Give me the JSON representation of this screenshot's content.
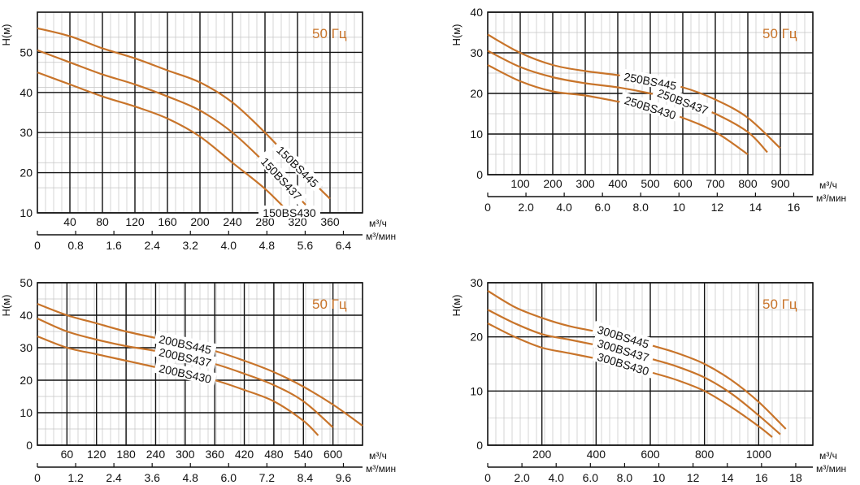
{
  "chart_data": [
    {
      "type": "line",
      "freq_label": "50 Гц",
      "ylabel": "H(м)",
      "x_unit_label": "м³/ч",
      "x2_unit_label": "м³/мин",
      "ylim": [
        10,
        60
      ],
      "xlim": [
        0,
        400
      ],
      "x_ticks": [
        40,
        80,
        120,
        160,
        200,
        240,
        280,
        320,
        360
      ],
      "y_ticks": [
        10,
        20,
        30,
        40,
        50
      ],
      "x2_ticks": [
        "0",
        "0.8",
        "1.6",
        "2.4",
        "3.2",
        "4.0",
        "4.8",
        "5.6",
        "6.4"
      ],
      "series": [
        {
          "name": "150BS445",
          "x": [
            0,
            40,
            80,
            120,
            160,
            200,
            240,
            280,
            320,
            360
          ],
          "y": [
            56,
            54,
            51,
            48.5,
            45.5,
            42.5,
            37.5,
            30,
            21.5,
            13.5
          ]
        },
        {
          "name": "150BS437",
          "x": [
            0,
            40,
            80,
            120,
            160,
            200,
            240,
            280,
            300,
            330
          ],
          "y": [
            50.5,
            47.5,
            44.5,
            42,
            39,
            35.5,
            30,
            22.5,
            18.5,
            12
          ]
        },
        {
          "name": "150BS430",
          "x": [
            0,
            40,
            80,
            120,
            160,
            200,
            240,
            280,
            310
          ],
          "y": [
            45,
            42,
            39,
            36.5,
            33.5,
            29,
            22.5,
            16,
            10
          ]
        }
      ]
    },
    {
      "type": "line",
      "freq_label": "50 Гц",
      "ylabel": "H(м)",
      "x_unit_label": "м³/ч",
      "x2_unit_label": "м³/мин",
      "ylim": [
        0,
        40
      ],
      "xlim": [
        0,
        1000
      ],
      "x_ticks": [
        100,
        200,
        300,
        400,
        500,
        600,
        700,
        800,
        900
      ],
      "y_ticks": [
        0,
        10,
        20,
        30,
        40
      ],
      "x2_ticks": [
        "0",
        "2.0",
        "4.0",
        "6.0",
        "8.0",
        "10",
        "12",
        "14",
        "16"
      ],
      "series": [
        {
          "name": "250BS445",
          "x": [
            0,
            100,
            200,
            300,
            400,
            500,
            600,
            700,
            800,
            900
          ],
          "y": [
            34.5,
            30,
            27,
            25.5,
            24.5,
            23,
            21.5,
            18.5,
            14,
            6.5
          ]
        },
        {
          "name": "250BS437",
          "x": [
            0,
            100,
            200,
            300,
            400,
            500,
            600,
            700,
            800,
            860
          ],
          "y": [
            30.5,
            26.5,
            24,
            22.5,
            21.5,
            20,
            18,
            15,
            10.5,
            5.5
          ]
        },
        {
          "name": "250BS430",
          "x": [
            0,
            100,
            200,
            300,
            400,
            500,
            600,
            700,
            800
          ],
          "y": [
            27,
            23,
            20.5,
            19.5,
            18,
            16.5,
            14,
            10.5,
            5
          ]
        }
      ]
    },
    {
      "type": "line",
      "freq_label": "50 Гц",
      "ylabel": "H(м)",
      "x_unit_label": "м³/ч",
      "x2_unit_label": "м³/мин",
      "ylim": [
        0,
        50
      ],
      "xlim": [
        0,
        660
      ],
      "x_ticks": [
        60,
        120,
        180,
        240,
        300,
        360,
        420,
        480,
        540,
        600
      ],
      "y_ticks": [
        0,
        10,
        20,
        30,
        40,
        50
      ],
      "x2_ticks": [
        "0",
        "1.2",
        "2.4",
        "3.6",
        "4.8",
        "6.0",
        "7.2",
        "8.4",
        "9.6"
      ],
      "series": [
        {
          "name": "200BS445",
          "x": [
            0,
            60,
            120,
            180,
            240,
            300,
            360,
            420,
            480,
            540,
            600,
            660
          ],
          "y": [
            43.5,
            40,
            37.5,
            35,
            33,
            31,
            29,
            26,
            22.5,
            18,
            12.5,
            6
          ]
        },
        {
          "name": "200BS437",
          "x": [
            0,
            60,
            120,
            180,
            240,
            300,
            360,
            420,
            480,
            540,
            600
          ],
          "y": [
            39,
            35,
            32.5,
            30.5,
            29,
            27,
            25,
            22,
            18.5,
            13.5,
            5.5
          ]
        },
        {
          "name": "200BS430",
          "x": [
            0,
            60,
            120,
            180,
            240,
            300,
            360,
            420,
            480,
            540,
            570
          ],
          "y": [
            33.5,
            30,
            28,
            26,
            24,
            22,
            20,
            17,
            13.5,
            7.5,
            3
          ]
        }
      ]
    },
    {
      "type": "line",
      "freq_label": "50 Гц",
      "ylabel": "H(м)",
      "x_unit_label": "м³/ч",
      "x2_unit_label": "м³/мин",
      "ylim": [
        0,
        30
      ],
      "xlim": [
        0,
        1200
      ],
      "x_ticks": [
        200,
        400,
        600,
        800,
        1000
      ],
      "y_ticks": [
        0,
        10,
        20,
        30
      ],
      "x2_ticks": [
        "0",
        "2.0",
        "4.0",
        "6.0",
        "8.0",
        "10",
        "12",
        "14",
        "16",
        "18"
      ],
      "series": [
        {
          "name": "300BS445",
          "x": [
            0,
            100,
            200,
            300,
            400,
            500,
            600,
            700,
            800,
            900,
            1000,
            1100
          ],
          "y": [
            28.5,
            25.5,
            23.5,
            22,
            21,
            20,
            18.5,
            17,
            15,
            12,
            8,
            3
          ]
        },
        {
          "name": "300BS437",
          "x": [
            0,
            100,
            200,
            300,
            400,
            500,
            600,
            700,
            800,
            900,
            1000,
            1080
          ],
          "y": [
            25,
            22.5,
            20.5,
            19.5,
            18.5,
            17.5,
            16,
            14.5,
            12.5,
            9.5,
            5.5,
            2
          ]
        },
        {
          "name": "300BS430",
          "x": [
            0,
            100,
            200,
            300,
            400,
            500,
            600,
            700,
            800,
            900,
            1000,
            1050
          ],
          "y": [
            22.5,
            20,
            18,
            17,
            16,
            15,
            13.5,
            12,
            10,
            7,
            3.5,
            1.5
          ]
        }
      ]
    }
  ]
}
